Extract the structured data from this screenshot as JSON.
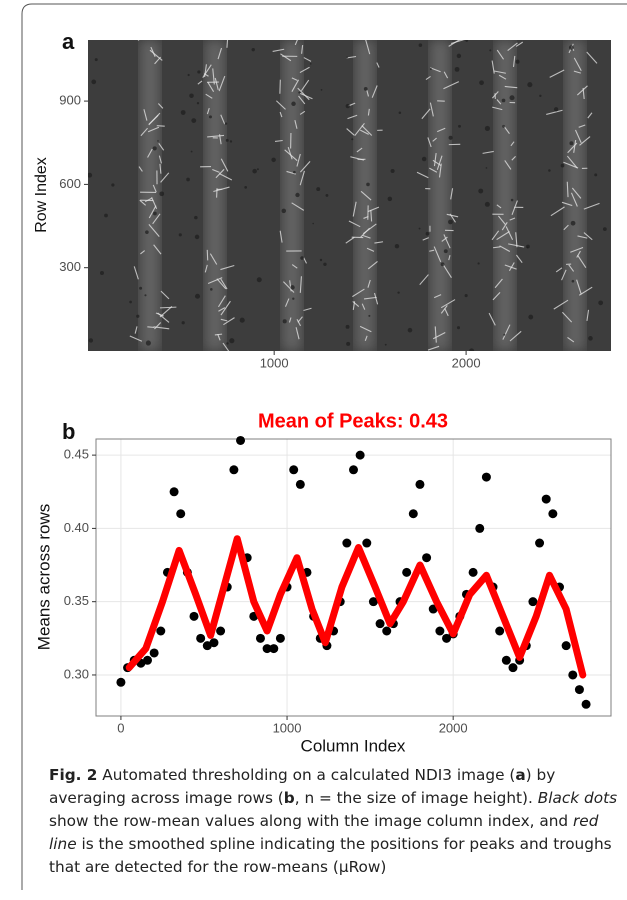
{
  "chart_data": [
    {
      "type": "image",
      "label": "a",
      "ylabel": "Row Index",
      "xlim": [
        30,
        2755
      ],
      "ylim": [
        0,
        1120
      ],
      "xticks": [
        1000,
        2000
      ],
      "yticks": [
        300,
        600,
        900
      ]
    },
    {
      "type": "scatter",
      "label": "b",
      "title": "Mean of Peaks: 0.43",
      "xlabel": "Column Index",
      "ylabel": "Means across rows",
      "xlim": [
        -150,
        2950
      ],
      "ylim": [
        0.272,
        0.461
      ],
      "xticks": [
        0,
        1000,
        2000
      ],
      "yticks": [
        {
          "value": 0.3,
          "label": "0.30"
        },
        0.35,
        {
          "value": 0.4,
          "label": "0.40"
        },
        0.45
      ],
      "grid": true,
      "series": [
        {
          "type": "scatter",
          "color": "#000000",
          "x": [
            0,
            40,
            80,
            120,
            160,
            200,
            240,
            280,
            320,
            360,
            400,
            440,
            480,
            520,
            560,
            600,
            640,
            680,
            720,
            760,
            800,
            840,
            880,
            920,
            960,
            1000,
            1040,
            1080,
            1120,
            1160,
            1200,
            1240,
            1280,
            1320,
            1360,
            1400,
            1440,
            1480,
            1520,
            1560,
            1600,
            1640,
            1680,
            1720,
            1760,
            1800,
            1840,
            1880,
            1920,
            1960,
            2000,
            2040,
            2080,
            2120,
            2160,
            2200,
            2240,
            2280,
            2320,
            2360,
            2400,
            2440,
            2480,
            2520,
            2560,
            2600,
            2640,
            2680,
            2720,
            2760,
            2800
          ],
          "values": [
            0.295,
            0.305,
            0.31,
            0.308,
            0.31,
            0.315,
            0.33,
            0.37,
            0.425,
            0.41,
            0.37,
            0.34,
            0.325,
            0.32,
            0.322,
            0.33,
            0.36,
            0.44,
            0.46,
            0.38,
            0.34,
            0.325,
            0.318,
            0.318,
            0.325,
            0.36,
            0.44,
            0.43,
            0.37,
            0.34,
            0.325,
            0.32,
            0.33,
            0.35,
            0.39,
            0.44,
            0.45,
            0.39,
            0.35,
            0.335,
            0.33,
            0.335,
            0.35,
            0.37,
            0.41,
            0.43,
            0.38,
            0.345,
            0.33,
            0.325,
            0.328,
            0.34,
            0.355,
            0.37,
            0.4,
            0.435,
            0.36,
            0.33,
            0.31,
            0.305,
            0.31,
            0.32,
            0.35,
            0.39,
            0.42,
            0.41,
            0.36,
            0.32,
            0.3,
            0.29,
            0.28
          ]
        },
        {
          "type": "line",
          "color": "#ff0000",
          "x": [
            50,
            150,
            250,
            350,
            450,
            540,
            620,
            700,
            800,
            880,
            960,
            1060,
            1150,
            1230,
            1330,
            1430,
            1530,
            1620,
            1700,
            1800,
            1900,
            2000,
            2100,
            2200,
            2300,
            2400,
            2500,
            2580,
            2680,
            2780
          ],
          "values": [
            0.305,
            0.318,
            0.35,
            0.385,
            0.355,
            0.327,
            0.36,
            0.393,
            0.35,
            0.33,
            0.355,
            0.38,
            0.345,
            0.322,
            0.36,
            0.387,
            0.36,
            0.335,
            0.35,
            0.375,
            0.35,
            0.328,
            0.355,
            0.368,
            0.34,
            0.312,
            0.34,
            0.368,
            0.345,
            0.3
          ]
        }
      ]
    }
  ],
  "caption": [
    "Fig. 2",
    " Automated thresholding on a calculated NDI3 image (",
    "a",
    ") by averaging across image rows (",
    "b",
    ", n = the size of image height). ",
    "Black dots",
    " show the row-mean values along with the image column index, and ",
    "red line",
    " is the smoothed spline indicating the positions for peaks and troughs that are detected for the row-means (μRow)"
  ]
}
